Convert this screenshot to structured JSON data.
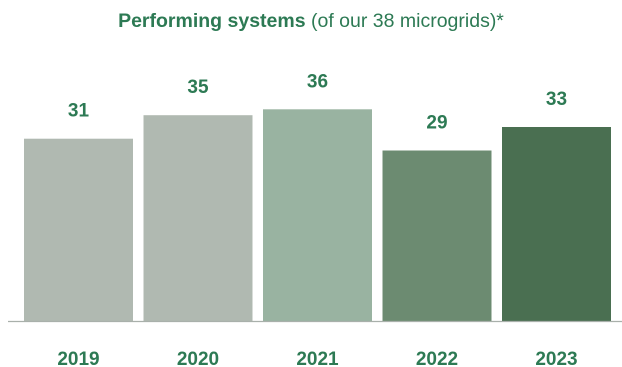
{
  "title": {
    "main": "Performing systems",
    "suffix": "(of our 38 microgrids)*"
  },
  "colors": {
    "title": "#2d7a54",
    "label": "#2d7a54",
    "axis": "#a9b0ab"
  },
  "chart_data": {
    "type": "bar",
    "title": "Performing systems (of our 38 microgrids)*",
    "categories": [
      "2019",
      "2020",
      "2021",
      "2022",
      "2023"
    ],
    "values": [
      31,
      35,
      36,
      29,
      33
    ],
    "bar_colors": [
      "#b0b9b1",
      "#b0b9b1",
      "#99b3a1",
      "#6c8b71",
      "#4a6f51"
    ],
    "data_labels": [
      "31",
      "35",
      "36",
      "29",
      "33"
    ],
    "xlabel": "",
    "ylabel": "",
    "ylim": [
      0,
      38
    ],
    "grid": false,
    "legend": "none"
  }
}
